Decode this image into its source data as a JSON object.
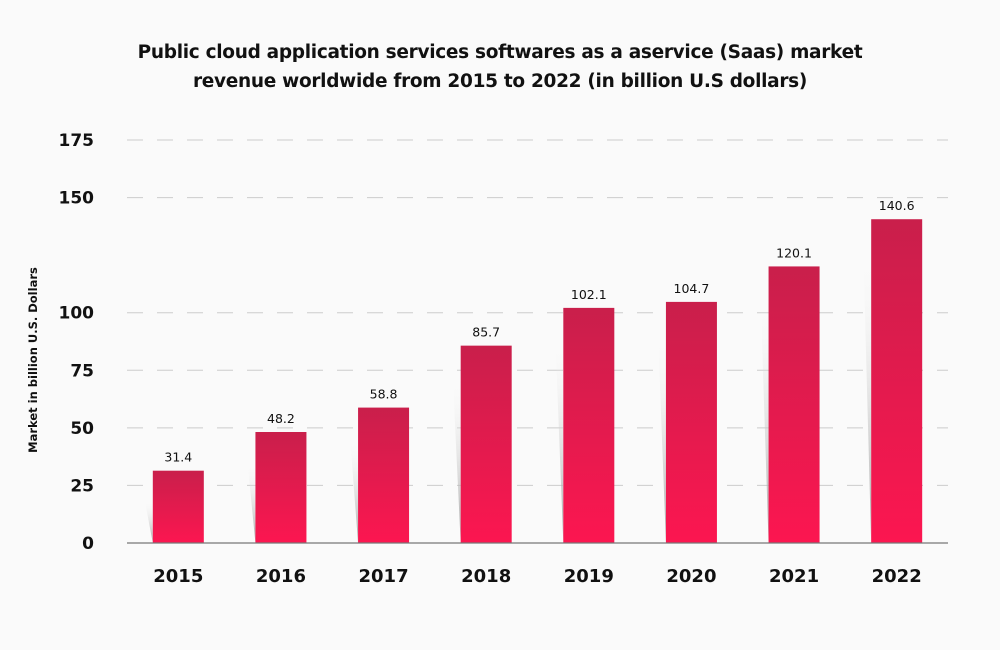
{
  "chart_data": {
    "type": "bar",
    "title": "Public cloud application services softwares as a aservice (Saas) market revenue worldwide from 2015 to 2022 (in billion U.S dollars)",
    "title_lines": [
      "Public cloud application services softwares as a aservice (Saas) market",
      "revenue worldwide from 2015 to 2022 (in billion U.S dollars)"
    ],
    "xlabel": "",
    "ylabel": "Market in billion U.S. Dollars",
    "categories": [
      "2015",
      "2016",
      "2017",
      "2018",
      "2019",
      "2020",
      "2021",
      "2022"
    ],
    "values": [
      31.4,
      48.2,
      58.8,
      85.7,
      102.1,
      104.7,
      120.1,
      140.6
    ],
    "data_labels": [
      "31.4",
      "48.2",
      "58.8",
      "85.7",
      "102.1",
      "104.7",
      "120.1",
      "140.6"
    ],
    "yticks": [
      "0",
      "25",
      "50",
      "75",
      "100",
      "150",
      "175"
    ],
    "ylim": [
      0,
      175
    ],
    "grid": true,
    "colors": {
      "bar_top": "#c91f4b",
      "bar_bottom": "#fc1650",
      "grid": "#cccccc"
    }
  }
}
